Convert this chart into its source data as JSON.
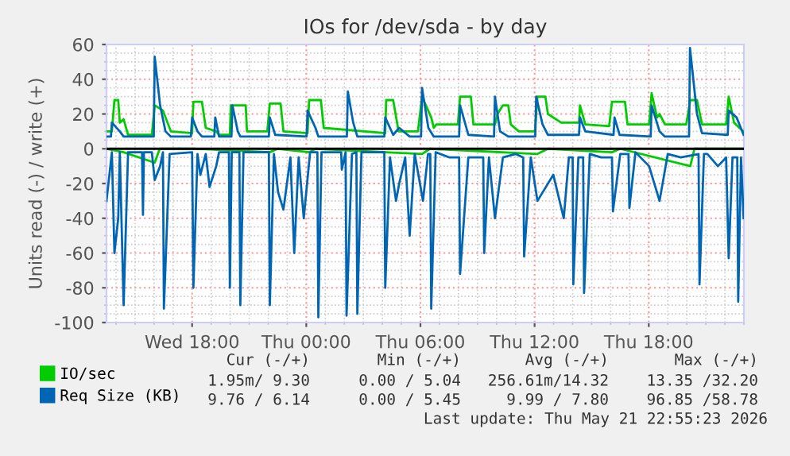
{
  "chart_data": {
    "type": "line",
    "title": "IOs for /dev/sda - by day",
    "ylabel": "Units read (-) / write (+)",
    "xlim": [
      "2026-05-20T13:30",
      "2026-05-21T23:00"
    ],
    "ylim": [
      -100,
      60
    ],
    "xticks": [
      {
        "value": "2026-05-20T18:00",
        "label": "Wed 18:00"
      },
      {
        "value": "2026-05-21T00:00",
        "label": "Thu 00:00"
      },
      {
        "value": "2026-05-21T06:00",
        "label": "Thu 06:00"
      },
      {
        "value": "2026-05-21T12:00",
        "label": "Thu 12:00"
      },
      {
        "value": "2026-05-21T18:00",
        "label": "Thu 18:00"
      }
    ],
    "yticks": [
      -100,
      -80,
      -60,
      -40,
      -20,
      0,
      20,
      40,
      60
    ],
    "grid": true,
    "legend": "bottom left",
    "ref_lines": [
      {
        "axis": "y",
        "value": 0,
        "label": null,
        "color": "#000000"
      }
    ],
    "series": [
      {
        "name": "IO/sec",
        "color": "#00cc00",
        "x": [
          "2026-05-20T13:30",
          "2026-05-20T13:47",
          "2026-05-20T13:55",
          "2026-05-20T14:07",
          "2026-05-20T14:12",
          "2026-05-20T14:24",
          "2026-05-20T14:38",
          "2026-05-20T15:53",
          "2026-05-20T16:02",
          "2026-05-20T16:28",
          "2026-05-20T16:53",
          "2026-05-20T18:00",
          "2026-05-20T18:04",
          "2026-05-20T18:31",
          "2026-05-20T18:43",
          "2026-05-20T19:16",
          "2026-05-20T19:25",
          "2026-05-20T19:59",
          "2026-05-20T20:02",
          "2026-05-20T20:49",
          "2026-05-20T20:53",
          "2026-05-20T21:57",
          "2026-05-20T22:05",
          "2026-05-20T22:39",
          "2026-05-20T22:48",
          "2026-05-21T00:04",
          "2026-05-21T00:09",
          "2026-05-21T00:46",
          "2026-05-21T00:55",
          "2026-05-21T04:09",
          "2026-05-21T04:12",
          "2026-05-21T04:34",
          "2026-05-21T04:51",
          "2026-05-21T05:52",
          "2026-05-21T06:05",
          "2026-05-21T06:34",
          "2026-05-21T06:42",
          "2026-05-21T06:50",
          "2026-05-21T07:58",
          "2026-05-21T08:05",
          "2026-05-21T08:39",
          "2026-05-21T08:47",
          "2026-05-21T09:55",
          "2026-05-21T10:03",
          "2026-05-21T10:20",
          "2026-05-21T10:37",
          "2026-05-21T10:45",
          "2026-05-21T11:10",
          "2026-05-21T12:01",
          "2026-05-21T12:09",
          "2026-05-21T12:34",
          "2026-05-21T12:42",
          "2026-05-21T13:24",
          "2026-05-21T14:20",
          "2026-05-21T14:23",
          "2026-05-21T14:40",
          "2026-05-21T15:55",
          "2026-05-21T16:04",
          "2026-05-21T16:45",
          "2026-05-21T16:53",
          "2026-05-21T18:01",
          "2026-05-21T18:09",
          "2026-05-21T18:26",
          "2026-05-21T18:34",
          "2026-05-21T18:51",
          "2026-05-21T19:58",
          "2026-05-21T20:11",
          "2026-05-21T20:32",
          "2026-05-21T20:48",
          "2026-05-21T22:04",
          "2026-05-21T22:12",
          "2026-05-21T22:29",
          "2026-05-21T22:46",
          "2026-05-21T22:59"
        ],
        "values": [
          10,
          10,
          28,
          28,
          15,
          17,
          8,
          8,
          25,
          22,
          10,
          9,
          27,
          27,
          12,
          10,
          8,
          8,
          25,
          25,
          10,
          10,
          26,
          26,
          10,
          9,
          28,
          28,
          12,
          9,
          28,
          28,
          10,
          10,
          30,
          18,
          12,
          14,
          14,
          30,
          30,
          14,
          14,
          20,
          25,
          25,
          14,
          10,
          10,
          30,
          30,
          20,
          15,
          15,
          25,
          14,
          13,
          27,
          27,
          14,
          14,
          32,
          18,
          20,
          14,
          14,
          28,
          28,
          14,
          14,
          30,
          15,
          12,
          10
        ]
      },
      {
        "color": "#00cc00",
        "x": [
          "2026-05-20T13:30",
          "2026-05-20T14:24",
          "2026-05-20T16:02",
          "2026-05-20T16:18",
          "2026-05-20T18:06",
          "2026-05-20T22:05",
          "2026-05-20T22:30",
          "2026-05-21T00:09",
          "2026-05-21T00:30",
          "2026-05-21T06:05",
          "2026-05-21T06:30",
          "2026-05-21T12:09",
          "2026-05-21T12:42",
          "2026-05-21T16:04",
          "2026-05-21T16:30",
          "2026-05-21T20:11",
          "2026-05-21T20:24",
          "2026-05-21T22:59"
        ],
        "values": [
          0,
          -2,
          -8,
          0,
          0,
          -2,
          0,
          -2,
          0,
          -3,
          0,
          -3,
          0,
          -2,
          0,
          -10,
          0,
          0
        ]
      },
      {
        "name": "Req Size (KB)",
        "color": "#0066b3",
        "x": [
          "2026-05-20T13:30",
          "2026-05-20T13:44",
          "2026-05-20T13:47",
          "2026-05-20T14:12",
          "2026-05-20T14:24",
          "2026-05-20T15:59",
          "2026-05-20T16:02",
          "2026-05-20T16:19",
          "2026-05-20T16:36",
          "2026-05-20T16:53",
          "2026-05-20T17:56",
          "2026-05-20T18:00",
          "2026-05-20T18:17",
          "2026-05-20T18:31",
          "2026-05-20T19:10",
          "2026-05-20T19:13",
          "2026-05-20T19:25",
          "2026-05-20T20:04",
          "2026-05-20T20:07",
          "2026-05-20T20:24",
          "2026-05-20T20:32",
          "2026-05-20T22:02",
          "2026-05-20T22:05",
          "2026-05-20T22:22",
          "2026-05-21T00:01",
          "2026-05-21T00:04",
          "2026-05-21T00:29",
          "2026-05-21T00:38",
          "2026-05-21T02:08",
          "2026-05-21T02:11",
          "2026-05-21T02:28",
          "2026-05-21T02:41",
          "2026-05-21T04:06",
          "2026-05-21T04:09",
          "2026-05-21T04:34",
          "2026-05-21T04:53",
          "2026-05-21T05:26",
          "2026-05-21T06:02",
          "2026-05-21T06:05",
          "2026-05-21T06:25",
          "2026-05-21T06:42",
          "2026-05-21T08:02",
          "2026-05-21T08:05",
          "2026-05-21T08:31",
          "2026-05-21T09:52",
          "2026-05-21T09:55",
          "2026-05-21T10:11",
          "2026-05-21T10:37",
          "2026-05-21T12:02",
          "2026-05-21T12:05",
          "2026-05-21T12:25",
          "2026-05-21T12:42",
          "2026-05-21T14:20",
          "2026-05-21T14:23",
          "2026-05-21T14:40",
          "2026-05-21T16:09",
          "2026-05-21T16:12",
          "2026-05-21T16:28",
          "2026-05-21T18:06",
          "2026-05-21T18:09",
          "2026-05-21T18:34",
          "2026-05-21T18:51",
          "2026-05-21T20:07",
          "2026-05-21T20:10",
          "2026-05-21T20:32",
          "2026-05-21T20:48",
          "2026-05-21T22:09",
          "2026-05-21T22:12",
          "2026-05-21T22:37",
          "2026-05-21T22:59"
        ],
        "values": [
          7,
          7,
          15,
          10,
          7,
          7,
          53,
          25,
          10,
          7,
          7,
          18,
          10,
          7,
          7,
          18,
          7,
          7,
          25,
          10,
          7,
          7,
          18,
          8,
          7,
          22,
          12,
          7,
          7,
          33,
          15,
          7,
          7,
          18,
          8,
          12,
          7,
          7,
          35,
          12,
          7,
          7,
          25,
          8,
          7,
          30,
          10,
          7,
          7,
          30,
          14,
          8,
          8,
          18,
          10,
          8,
          18,
          8,
          7,
          25,
          10,
          7,
          7,
          58,
          20,
          9,
          8,
          22,
          18,
          8
        ]
      },
      {
        "color": "#0066b3",
        "x": [
          "2026-05-20T13:30",
          "2026-05-20T13:47",
          "2026-05-20T13:55",
          "2026-05-20T14:07",
          "2026-05-20T14:12",
          "2026-05-20T14:24",
          "2026-05-20T14:38",
          "2026-05-20T15:22",
          "2026-05-20T15:25",
          "2026-05-20T15:28",
          "2026-05-20T15:53",
          "2026-05-20T16:02",
          "2026-05-20T16:19",
          "2026-05-20T16:28",
          "2026-05-20T16:31",
          "2026-05-20T16:49",
          "2026-05-20T18:00",
          "2026-05-20T18:04",
          "2026-05-20T18:17",
          "2026-05-20T18:26",
          "2026-05-20T18:43",
          "2026-05-20T18:55",
          "2026-05-20T19:16",
          "2026-05-20T19:25",
          "2026-05-20T19:56",
          "2026-05-20T19:59",
          "2026-05-20T20:05",
          "2026-05-20T20:29",
          "2026-05-20T20:32",
          "2026-05-20T20:42",
          "2026-05-20T22:02",
          "2026-05-20T22:05",
          "2026-05-20T22:18",
          "2026-05-20T22:31",
          "2026-05-20T22:48",
          "2026-05-20T23:10",
          "2026-05-20T23:22",
          "2026-05-20T23:36",
          "2026-05-20T23:52",
          "2026-05-21T00:12",
          "2026-05-21T00:35",
          "2026-05-21T00:38",
          "2026-05-21T00:48",
          "2026-05-21T01:50",
          "2026-05-21T01:52",
          "2026-05-21T02:04",
          "2026-05-21T02:07",
          "2026-05-21T02:24",
          "2026-05-21T02:38",
          "2026-05-21T02:41",
          "2026-05-21T02:54",
          "2026-05-21T04:06",
          "2026-05-21T04:09",
          "2026-05-21T04:24",
          "2026-05-21T04:43",
          "2026-05-21T04:53",
          "2026-05-21T05:12",
          "2026-05-21T05:26",
          "2026-05-21T05:42",
          "2026-05-21T06:08",
          "2026-05-21T06:24",
          "2026-05-21T06:31",
          "2026-05-21T06:34",
          "2026-05-21T06:48",
          "2026-05-21T07:32",
          "2026-05-21T08:02",
          "2026-05-21T08:05",
          "2026-05-21T08:31",
          "2026-05-21T09:18",
          "2026-05-21T09:21",
          "2026-05-21T09:36",
          "2026-05-21T09:55",
          "2026-05-21T10:20",
          "2026-05-21T11:00",
          "2026-05-21T11:24",
          "2026-05-21T11:27",
          "2026-05-21T11:48",
          "2026-05-21T12:09",
          "2026-05-21T12:59",
          "2026-05-21T13:32",
          "2026-05-21T13:48",
          "2026-05-21T14:00",
          "2026-05-21T14:02",
          "2026-05-21T14:18",
          "2026-05-21T14:33",
          "2026-05-21T14:36",
          "2026-05-21T14:54",
          "2026-05-21T15:30",
          "2026-05-21T16:04",
          "2026-05-21T16:07",
          "2026-05-21T16:30",
          "2026-05-21T16:56",
          "2026-05-21T16:59",
          "2026-05-21T17:18",
          "2026-05-21T18:01",
          "2026-05-21T18:34",
          "2026-05-21T19:00",
          "2026-05-21T19:41",
          "2026-05-21T20:37",
          "2026-05-21T20:40",
          "2026-05-21T20:54",
          "2026-05-21T21:05",
          "2026-05-21T21:38",
          "2026-05-21T22:04",
          "2026-05-21T22:12",
          "2026-05-21T22:24",
          "2026-05-21T22:39",
          "2026-05-21T22:42",
          "2026-05-21T22:51",
          "2026-05-21T22:59"
        ],
        "values": [
          -30,
          -2,
          -60,
          -40,
          -2,
          -90,
          -2,
          -2,
          -38,
          -2,
          -2,
          -18,
          -10,
          -2,
          -92,
          -3,
          -2,
          -80,
          -3,
          -15,
          -3,
          -22,
          -10,
          -2,
          -2,
          -80,
          -2,
          -2,
          -90,
          -2,
          -2,
          -90,
          -3,
          -25,
          -35,
          -5,
          -60,
          -5,
          -40,
          -2,
          -2,
          -97,
          -2,
          -2,
          -12,
          -2,
          -96,
          -3,
          -2,
          -95,
          -2,
          -2,
          -80,
          -5,
          -30,
          -20,
          -5,
          -50,
          -3,
          -30,
          -3,
          -3,
          -92,
          -2,
          -5,
          -5,
          -72,
          -5,
          -5,
          -60,
          -5,
          -40,
          -5,
          -3,
          -5,
          -62,
          -5,
          -30,
          -15,
          -40,
          -5,
          -5,
          -78,
          -5,
          -5,
          -83,
          -3,
          -5,
          -5,
          -36,
          -3,
          -3,
          -34,
          -2,
          -10,
          -30,
          -3,
          -5,
          -3,
          -78,
          -3,
          -3,
          -10,
          -5,
          -63,
          -5,
          -5,
          -88,
          -5,
          -40
        ]
      }
    ],
    "annotations": [
      "Cur (-/+)",
      "Min (-/+)",
      "Avg (-/+)",
      "Max (-/+)",
      "1.95m/ 9.30",
      "0.00 / 5.04",
      "256.61m/14.32",
      "13.35 /32.20",
      "9.76 / 6.14",
      "0.00 / 5.45",
      "9.99 / 7.80",
      "96.85 /58.78",
      "Last update: Thu May 21 22:55:23 2026"
    ]
  }
}
